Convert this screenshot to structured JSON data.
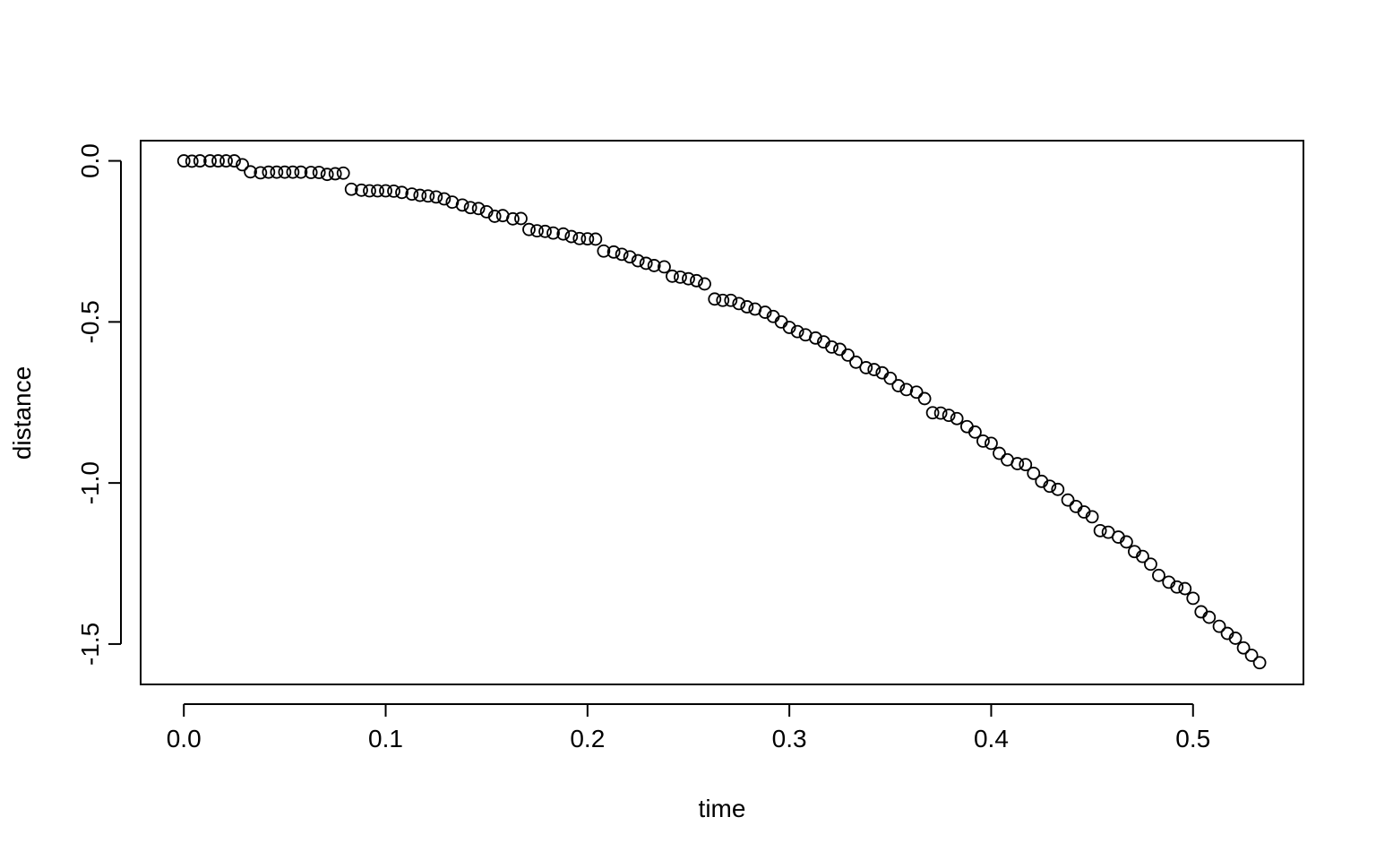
{
  "chart_data": {
    "type": "scatter",
    "title": "",
    "xlabel": "time",
    "ylabel": "distance",
    "xlim": [
      -0.0214,
      0.5547
    ],
    "ylim": [
      -1.6254,
      0.0628
    ],
    "x_ticks": [
      0.0,
      0.1,
      0.2,
      0.3,
      0.4,
      0.5
    ],
    "x_tick_labels": [
      "0.0",
      "0.1",
      "0.2",
      "0.3",
      "0.4",
      "0.5"
    ],
    "y_ticks": [
      0.0,
      -0.5,
      -1.0,
      -1.5
    ],
    "y_tick_labels": [
      "0.0",
      "-0.5",
      "-1.0",
      "-1.5"
    ],
    "grid": false,
    "legend": "none",
    "marker": "open-circle",
    "color": "#000000",
    "series": [
      {
        "points": [
          [
            0.0,
            0.0
          ],
          [
            0.004,
            -0.001
          ],
          [
            0.008,
            0.0
          ],
          [
            0.013,
            0.0
          ],
          [
            0.017,
            0.0
          ],
          [
            0.021,
            0.0
          ],
          [
            0.025,
            0.0
          ],
          [
            0.029,
            -0.012
          ],
          [
            0.033,
            -0.034
          ],
          [
            0.038,
            -0.037
          ],
          [
            0.042,
            -0.035
          ],
          [
            0.046,
            -0.035
          ],
          [
            0.05,
            -0.035
          ],
          [
            0.054,
            -0.035
          ],
          [
            0.058,
            -0.035
          ],
          [
            0.063,
            -0.036
          ],
          [
            0.067,
            -0.036
          ],
          [
            0.071,
            -0.042
          ],
          [
            0.075,
            -0.04
          ],
          [
            0.079,
            -0.038
          ],
          [
            0.083,
            -0.088
          ],
          [
            0.088,
            -0.091
          ],
          [
            0.092,
            -0.093
          ],
          [
            0.096,
            -0.093
          ],
          [
            0.1,
            -0.093
          ],
          [
            0.104,
            -0.094
          ],
          [
            0.108,
            -0.098
          ],
          [
            0.113,
            -0.103
          ],
          [
            0.117,
            -0.107
          ],
          [
            0.121,
            -0.109
          ],
          [
            0.125,
            -0.112
          ],
          [
            0.129,
            -0.118
          ],
          [
            0.133,
            -0.128
          ],
          [
            0.138,
            -0.137
          ],
          [
            0.142,
            -0.145
          ],
          [
            0.146,
            -0.148
          ],
          [
            0.15,
            -0.158
          ],
          [
            0.154,
            -0.172
          ],
          [
            0.158,
            -0.17
          ],
          [
            0.163,
            -0.18
          ],
          [
            0.167,
            -0.179
          ],
          [
            0.171,
            -0.213
          ],
          [
            0.175,
            -0.217
          ],
          [
            0.179,
            -0.219
          ],
          [
            0.183,
            -0.224
          ],
          [
            0.188,
            -0.227
          ],
          [
            0.192,
            -0.235
          ],
          [
            0.196,
            -0.241
          ],
          [
            0.2,
            -0.242
          ],
          [
            0.204,
            -0.243
          ],
          [
            0.208,
            -0.28
          ],
          [
            0.213,
            -0.283
          ],
          [
            0.217,
            -0.29
          ],
          [
            0.221,
            -0.298
          ],
          [
            0.225,
            -0.31
          ],
          [
            0.229,
            -0.318
          ],
          [
            0.233,
            -0.325
          ],
          [
            0.238,
            -0.329
          ],
          [
            0.242,
            -0.358
          ],
          [
            0.246,
            -0.361
          ],
          [
            0.25,
            -0.366
          ],
          [
            0.254,
            -0.372
          ],
          [
            0.258,
            -0.382
          ],
          [
            0.263,
            -0.429
          ],
          [
            0.267,
            -0.433
          ],
          [
            0.271,
            -0.433
          ],
          [
            0.275,
            -0.443
          ],
          [
            0.279,
            -0.453
          ],
          [
            0.283,
            -0.46
          ],
          [
            0.288,
            -0.47
          ],
          [
            0.292,
            -0.483
          ],
          [
            0.296,
            -0.5
          ],
          [
            0.3,
            -0.517
          ],
          [
            0.304,
            -0.53
          ],
          [
            0.308,
            -0.54
          ],
          [
            0.313,
            -0.55
          ],
          [
            0.317,
            -0.562
          ],
          [
            0.321,
            -0.578
          ],
          [
            0.325,
            -0.585
          ],
          [
            0.329,
            -0.603
          ],
          [
            0.333,
            -0.625
          ],
          [
            0.338,
            -0.642
          ],
          [
            0.342,
            -0.648
          ],
          [
            0.346,
            -0.658
          ],
          [
            0.35,
            -0.675
          ],
          [
            0.354,
            -0.698
          ],
          [
            0.358,
            -0.71
          ],
          [
            0.363,
            -0.718
          ],
          [
            0.367,
            -0.738
          ],
          [
            0.371,
            -0.782
          ],
          [
            0.375,
            -0.783
          ],
          [
            0.379,
            -0.79
          ],
          [
            0.383,
            -0.8
          ],
          [
            0.388,
            -0.825
          ],
          [
            0.392,
            -0.842
          ],
          [
            0.396,
            -0.87
          ],
          [
            0.4,
            -0.877
          ],
          [
            0.404,
            -0.908
          ],
          [
            0.408,
            -0.928
          ],
          [
            0.413,
            -0.94
          ],
          [
            0.417,
            -0.943
          ],
          [
            0.421,
            -0.97
          ],
          [
            0.425,
            -0.995
          ],
          [
            0.429,
            -1.01
          ],
          [
            0.433,
            -1.02
          ],
          [
            0.438,
            -1.053
          ],
          [
            0.442,
            -1.073
          ],
          [
            0.446,
            -1.09
          ],
          [
            0.45,
            -1.105
          ],
          [
            0.454,
            -1.148
          ],
          [
            0.458,
            -1.153
          ],
          [
            0.463,
            -1.168
          ],
          [
            0.467,
            -1.183
          ],
          [
            0.471,
            -1.213
          ],
          [
            0.475,
            -1.228
          ],
          [
            0.479,
            -1.252
          ],
          [
            0.483,
            -1.287
          ],
          [
            0.488,
            -1.308
          ],
          [
            0.492,
            -1.323
          ],
          [
            0.496,
            -1.328
          ],
          [
            0.5,
            -1.358
          ],
          [
            0.504,
            -1.4
          ],
          [
            0.508,
            -1.417
          ],
          [
            0.513,
            -1.445
          ],
          [
            0.517,
            -1.467
          ],
          [
            0.521,
            -1.482
          ],
          [
            0.525,
            -1.512
          ],
          [
            0.529,
            -1.535
          ],
          [
            0.533,
            -1.558
          ]
        ]
      }
    ]
  }
}
